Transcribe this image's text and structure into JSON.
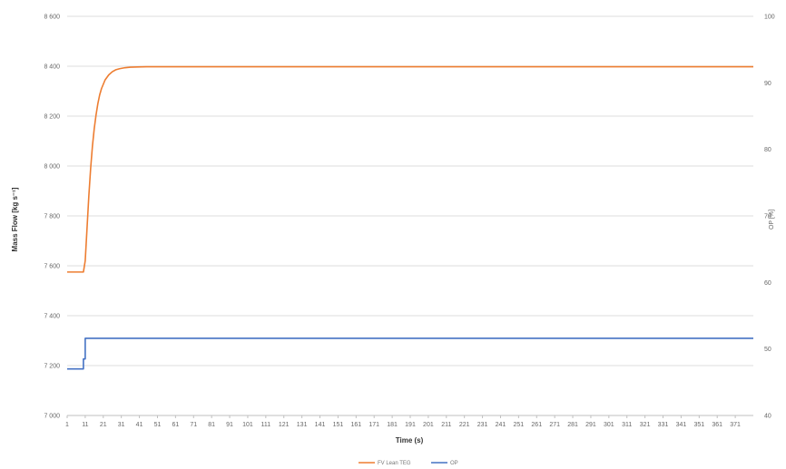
{
  "chart_data": {
    "type": "line",
    "title": "",
    "xlabel": "Time (s)",
    "ylabel_left": "Mass Flow [kg s⁻¹]",
    "ylabel_right": "OP [%]",
    "x_ticks": [
      "1",
      "11",
      "21",
      "31",
      "41",
      "51",
      "61",
      "71",
      "81",
      "91",
      "101",
      "111",
      "121",
      "131",
      "141",
      "151",
      "161",
      "171",
      "181",
      "191",
      "201",
      "211",
      "221",
      "231",
      "241",
      "251",
      "261",
      "271",
      "281",
      "291",
      "301",
      "311",
      "321",
      "331",
      "341",
      "351",
      "361",
      "371"
    ],
    "ylim_left": [
      7000,
      8600
    ],
    "y_ticks_left": [
      "7 000",
      "7 200",
      "7 400",
      "7 600",
      "7 800",
      "8 000",
      "8 200",
      "8 400",
      "8 600"
    ],
    "ylim_right": [
      40,
      100
    ],
    "y_ticks_right": [
      "40",
      "50",
      "60",
      "70",
      "80",
      "90",
      "100"
    ],
    "grid": true,
    "legend_position": "bottom",
    "xlim": [
      1,
      381
    ],
    "series": [
      {
        "name": "FV Lean TEG",
        "axis": "left",
        "color": "#ED7D31",
        "x": [
          1,
          10,
          11,
          12,
          13,
          14,
          15,
          16,
          17,
          18,
          19,
          20,
          22,
          24,
          26,
          28,
          30,
          33,
          36,
          40,
          45,
          50,
          60,
          100,
          200,
          300,
          381
        ],
        "y": [
          7575,
          7575,
          7620,
          7750,
          7880,
          7990,
          8080,
          8150,
          8205,
          8250,
          8285,
          8310,
          8345,
          8365,
          8378,
          8386,
          8390,
          8394,
          8396,
          8397,
          8398,
          8398,
          8398,
          8398,
          8398,
          8398,
          8398
        ]
      },
      {
        "name": "OP",
        "axis": "right",
        "color": "#4472C4",
        "x": [
          1,
          10,
          10,
          11,
          11,
          381
        ],
        "y": [
          47,
          47,
          48.5,
          48.5,
          51.6,
          51.6
        ]
      }
    ]
  }
}
